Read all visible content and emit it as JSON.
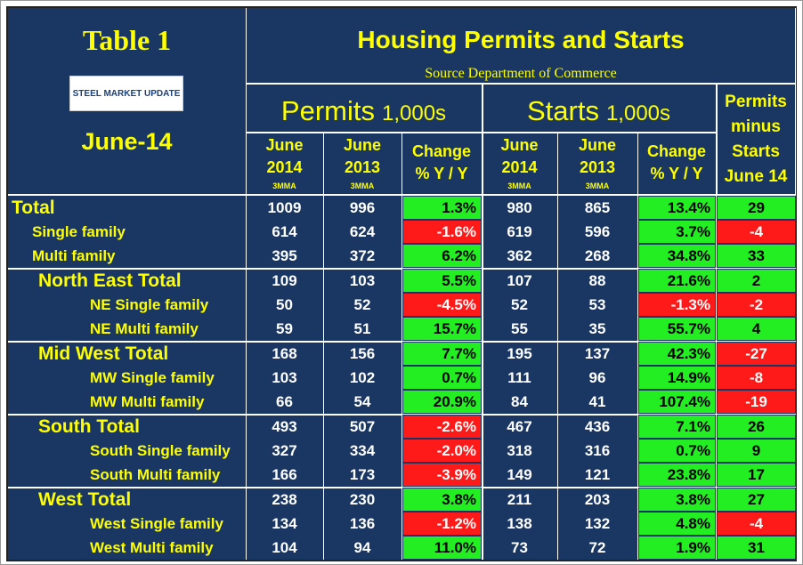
{
  "header": {
    "table_label": "Table 1",
    "logo": "STEEL MARKET UPDATE",
    "date": "June-14",
    "title": "Housing Permits and Starts",
    "source": "Source Department of Commerce"
  },
  "table": {
    "groups": [
      {
        "name": "Permits",
        "unit": "1,000s"
      },
      {
        "name": "Starts",
        "unit": "1,000s"
      }
    ],
    "columns": [
      {
        "line1": "June",
        "line2": "2014",
        "note": "3MMA"
      },
      {
        "line1": "June",
        "line2": "2013",
        "note": "3MMA"
      },
      {
        "line1": "Change",
        "line2": "% Y / Y"
      }
    ],
    "last_header": [
      "Permits",
      "minus",
      "Starts",
      "June 14"
    ],
    "sections": [
      {
        "rows": [
          {
            "label": "Total",
            "cells": [
              "1009",
              "996",
              "1.3%",
              "980",
              "865",
              "13.4%",
              "29"
            ]
          },
          {
            "label": "Single family",
            "cells": [
              "614",
              "624",
              "-1.6%",
              "619",
              "596",
              "3.7%",
              "-4"
            ]
          },
          {
            "label": "Multi family",
            "cells": [
              "395",
              "372",
              "6.2%",
              "362",
              "268",
              "34.8%",
              "33"
            ]
          }
        ]
      },
      {
        "rows": [
          {
            "label": "North East Total",
            "cells": [
              "109",
              "103",
              "5.5%",
              "107",
              "88",
              "21.6%",
              "2"
            ]
          },
          {
            "label": "NE Single family",
            "cells": [
              "50",
              "52",
              "-4.5%",
              "52",
              "53",
              "-1.3%",
              "-2"
            ]
          },
          {
            "label": "NE Multi family",
            "cells": [
              "59",
              "51",
              "15.7%",
              "55",
              "35",
              "55.7%",
              "4"
            ]
          }
        ]
      },
      {
        "rows": [
          {
            "label": "Mid West Total",
            "cells": [
              "168",
              "156",
              "7.7%",
              "195",
              "137",
              "42.3%",
              "-27"
            ]
          },
          {
            "label": "MW Single family",
            "cells": [
              "103",
              "102",
              "0.7%",
              "111",
              "96",
              "14.9%",
              "-8"
            ]
          },
          {
            "label": "MW Multi family",
            "cells": [
              "66",
              "54",
              "20.9%",
              "84",
              "41",
              "107.4%",
              "-19"
            ]
          }
        ]
      },
      {
        "rows": [
          {
            "label": "South Total",
            "cells": [
              "493",
              "507",
              "-2.6%",
              "467",
              "436",
              "7.1%",
              "26"
            ]
          },
          {
            "label": "South Single family",
            "cells": [
              "327",
              "334",
              "-2.0%",
              "318",
              "316",
              "0.7%",
              "9"
            ]
          },
          {
            "label": "South Multi family",
            "cells": [
              "166",
              "173",
              "-3.9%",
              "149",
              "121",
              "23.8%",
              "17"
            ]
          }
        ]
      },
      {
        "rows": [
          {
            "label": "West Total",
            "cells": [
              "238",
              "230",
              "3.8%",
              "211",
              "203",
              "3.8%",
              "27"
            ]
          },
          {
            "label": "West Single family",
            "cells": [
              "134",
              "136",
              "-1.2%",
              "138",
              "132",
              "4.8%",
              "-4"
            ]
          },
          {
            "label": "West Multi family",
            "cells": [
              "104",
              "94",
              "11.0%",
              "73",
              "72",
              "1.9%",
              "31"
            ]
          }
        ]
      }
    ]
  }
}
